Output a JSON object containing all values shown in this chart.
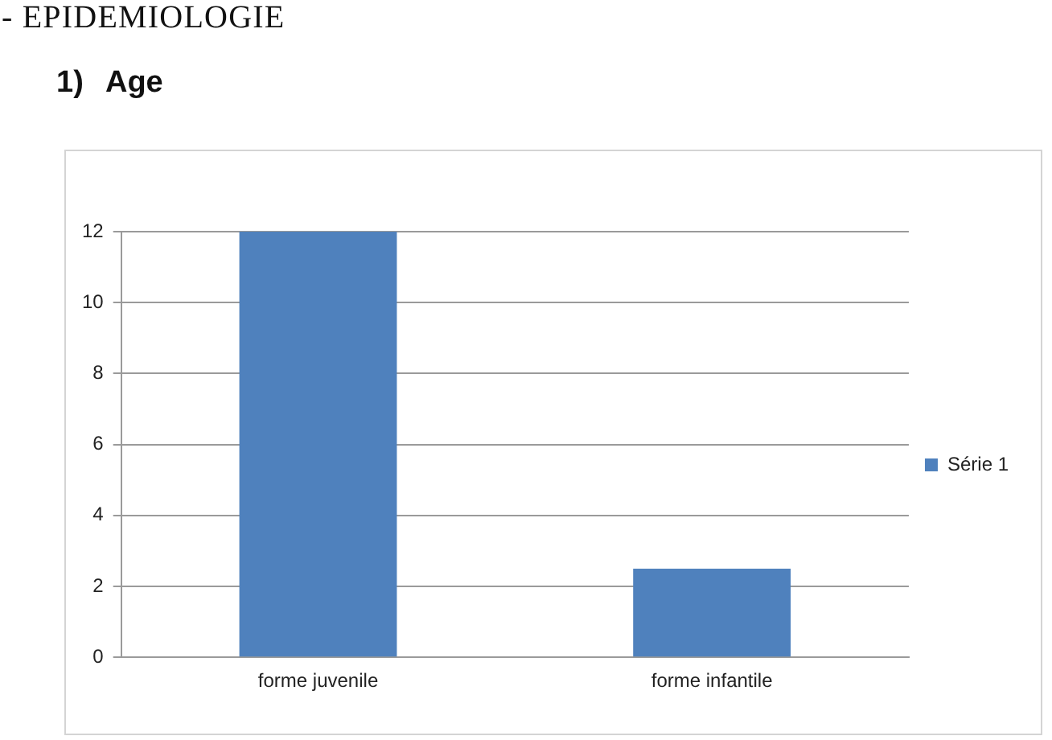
{
  "chart_data": {
    "type": "bar",
    "title": "- EPIDEMIOLOGIE",
    "subtitle": "1) Age",
    "categories": [
      "forme juvenile",
      "forme infantile"
    ],
    "series": [
      {
        "name": "Série 1",
        "color": "#4f81bd",
        "values": [
          12,
          2.5
        ]
      }
    ],
    "ylim": [
      0,
      12
    ],
    "yticks": [
      0,
      2,
      4,
      6,
      8,
      10,
      12
    ],
    "grid": "y",
    "legend": "right"
  }
}
